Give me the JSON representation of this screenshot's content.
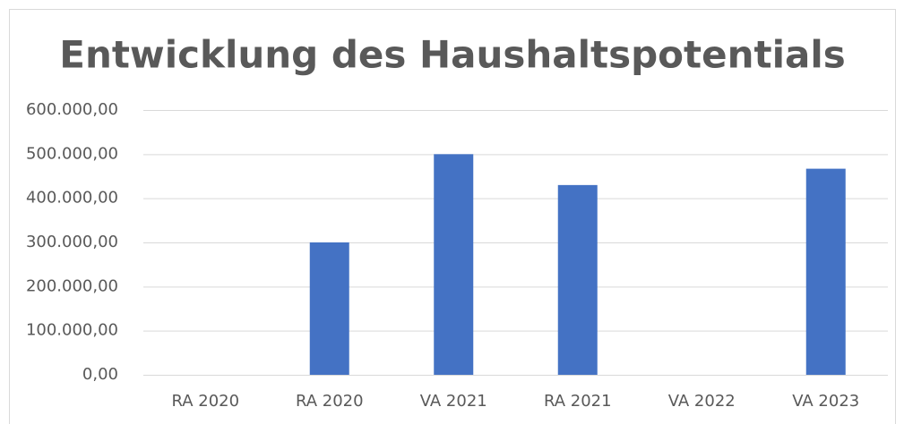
{
  "chart_data": {
    "type": "bar",
    "title": "Entwicklung des Haushaltspotentials",
    "categories": [
      "RA 2020",
      "RA 2020",
      "VA 2021",
      "RA 2021",
      "VA 2022",
      "VA 2023"
    ],
    "values": [
      null,
      300000,
      500000,
      430000,
      null,
      467000
    ],
    "color": "#4472c4",
    "ylim": [
      0,
      600000
    ],
    "yticks": [
      {
        "value": 0,
        "label": "0,00"
      },
      {
        "value": 100000,
        "label": "100.000,00"
      },
      {
        "value": 200000,
        "label": "200.000,00"
      },
      {
        "value": 300000,
        "label": "300.000,00"
      },
      {
        "value": 400000,
        "label": "400.000,00"
      },
      {
        "value": 500000,
        "label": "500.000,00"
      },
      {
        "value": 600000,
        "label": "600.000,00"
      }
    ],
    "grid": true
  }
}
